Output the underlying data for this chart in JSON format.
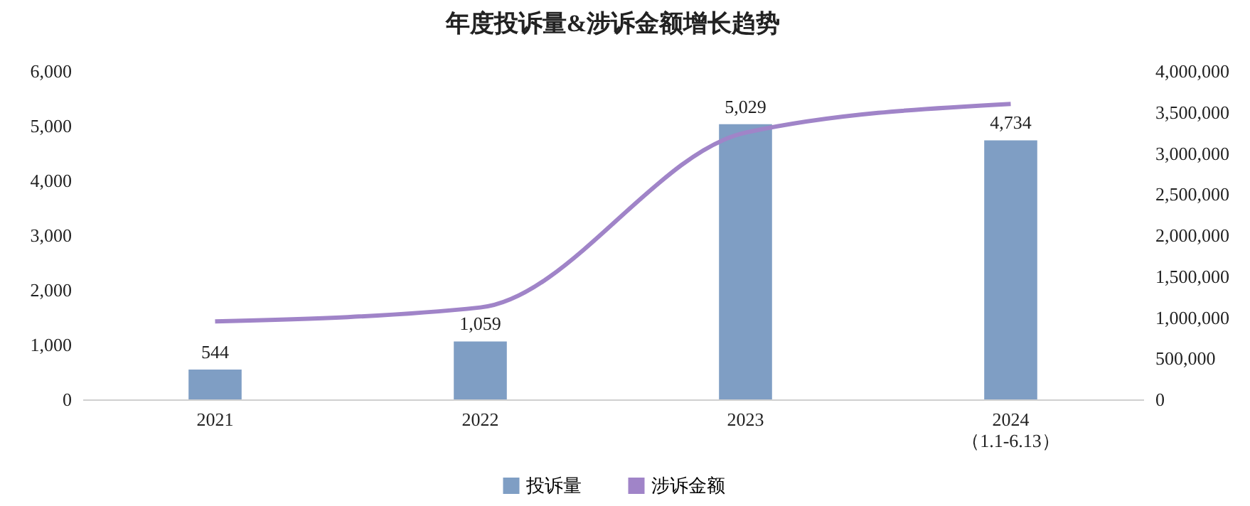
{
  "chart_data": {
    "type": "bar",
    "title": "年度投诉量&涉诉金额增长趋势",
    "categories": [
      "2021",
      "2022",
      "2023",
      "2024\n（1.1-6.13）"
    ],
    "series": [
      {
        "name": "投诉量",
        "color": "#7f9ec4",
        "values": [
          544,
          1059,
          5029,
          4734
        ],
        "value_labels": [
          "544",
          "1,059",
          "5,029",
          "4,734"
        ]
      },
      {
        "name": "涉诉金额",
        "type": "line",
        "axis": "y2",
        "color": "#a084c8",
        "values": [
          950000,
          1120000,
          3250000,
          3600000
        ]
      }
    ],
    "ylim": [
      0,
      6000
    ],
    "yticks": [
      {
        "value": 0,
        "label": "0"
      },
      {
        "value": 1000,
        "label": "1,000"
      },
      {
        "value": 2000,
        "label": "2,000"
      },
      {
        "value": 3000,
        "label": "3,000"
      },
      {
        "value": 4000,
        "label": "4,000"
      },
      {
        "value": 5000,
        "label": "5,000"
      },
      {
        "value": 6000,
        "label": "6,000"
      }
    ],
    "y2lim": [
      0,
      4000000
    ],
    "y2ticks": [
      {
        "value": 0,
        "label": "0"
      },
      {
        "value": 500000,
        "label": "500,000"
      },
      {
        "value": 1000000,
        "label": "1,000,000"
      },
      {
        "value": 1500000,
        "label": "1,500,000"
      },
      {
        "value": 2000000,
        "label": "2,000,000"
      },
      {
        "value": 2500000,
        "label": "2,500,000"
      },
      {
        "value": 3000000,
        "label": "3,000,000"
      },
      {
        "value": 3500000,
        "label": "3,500,000"
      },
      {
        "value": 4000000,
        "label": "4,000,000"
      }
    ],
    "legend": "bottom",
    "grid": false,
    "marker": "none",
    "line_style": "solid"
  }
}
